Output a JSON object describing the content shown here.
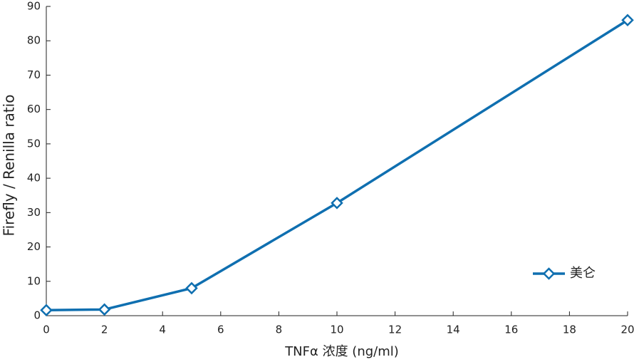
{
  "chart_data": {
    "type": "line",
    "x_label": "TNFα 浓度 (ng/ml)",
    "y_label": "Firefly / Renilla ratio",
    "x": [
      0,
      2,
      5,
      10,
      20
    ],
    "series": [
      {
        "name": "美仑",
        "color": "#0f6fb0",
        "values": [
          1.6,
          1.8,
          8,
          32.8,
          86
        ]
      }
    ],
    "xlim": [
      0,
      20
    ],
    "xticks": [
      0,
      2,
      4,
      6,
      8,
      10,
      12,
      14,
      16,
      18,
      20
    ],
    "ylim": [
      0,
      90
    ],
    "yticks": [
      0,
      10,
      20,
      30,
      40,
      50,
      60,
      70,
      80,
      90
    ],
    "marker": "diamond",
    "legend": "lower right",
    "grid": false
  }
}
